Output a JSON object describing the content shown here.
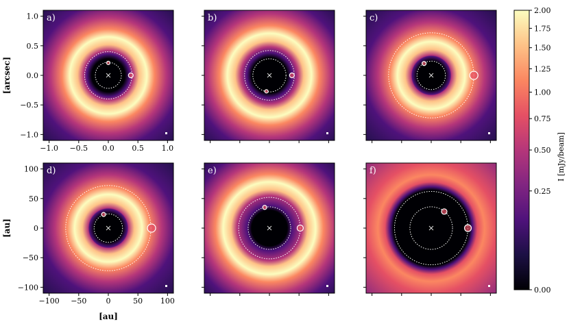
{
  "chart_data": {
    "type": "heatmap",
    "panels": [
      {
        "label": "a)",
        "orbits_r_au": [
          0,
          22,
          40
        ],
        "planets": [
          {
            "x": 0,
            "y": 21,
            "r": 2.5
          },
          {
            "x": 38,
            "y": 0,
            "r": 3.5
          }
        ],
        "gap_inner_au": 28,
        "gap_outer_au": 42
      },
      {
        "label": "b)",
        "orbits_r_au": [
          0,
          28,
          42
        ],
        "planets": [
          {
            "x": -5,
            "y": -27,
            "r": 2.5
          },
          {
            "x": 38,
            "y": 0,
            "r": 3.5
          }
        ],
        "gap_inner_au": 30,
        "gap_outer_au": 48
      },
      {
        "label": "c)",
        "orbits_r_au": [
          0,
          24,
          72
        ],
        "planets": [
          {
            "x": -12,
            "y": 20,
            "r": 3
          },
          {
            "x": 72,
            "y": 0,
            "r": 6
          }
        ],
        "gap_inner_au": 24,
        "gap_outer_au": 34
      },
      {
        "label": "d)",
        "orbits_r_au": [
          0,
          24,
          72
        ],
        "planets": [
          {
            "x": -8,
            "y": 23,
            "r": 3
          },
          {
            "x": 73,
            "y": 0,
            "r": 6
          }
        ],
        "gap_inner_au": 24,
        "gap_outer_au": 34
      },
      {
        "label": "e)",
        "orbits_r_au": [
          0,
          36,
          52
        ],
        "planets": [
          {
            "x": -8,
            "y": 35,
            "r": 3
          },
          {
            "x": 52,
            "y": 0,
            "r": 4.5
          }
        ],
        "gap_inner_au": 30,
        "gap_outer_au": 55
      },
      {
        "label": "f)",
        "orbits_r_au": [
          0,
          36,
          62
        ],
        "planets": [
          {
            "x": 22,
            "y": 28,
            "r": 4
          },
          {
            "x": 62,
            "y": 0,
            "r": 5
          }
        ],
        "gap_inner_au": 66,
        "gap_outer_au": 72
      }
    ],
    "top_row": {
      "ylabel": "[arcsec]",
      "xticks": [
        "−1.0",
        "−0.5",
        "0.0",
        "0.5",
        "1.0"
      ],
      "yticks": [
        "1.0",
        "0.5",
        "0.0",
        "−0.5",
        "−1.0"
      ],
      "tick_values": [
        -1.0,
        -0.5,
        0.0,
        0.5,
        1.0
      ],
      "range": [
        -1.1,
        1.1
      ]
    },
    "bottom_row": {
      "xlabel": "[au]",
      "ylabel": "[au]",
      "xticks": [
        "−100",
        "−50",
        "0",
        "50",
        "100"
      ],
      "yticks": [
        "100",
        "50",
        "0",
        "−50",
        "−100"
      ],
      "tick_values": [
        -100,
        -50,
        0,
        50,
        100
      ],
      "range": [
        -110,
        110
      ]
    },
    "colorbar": {
      "label": "I [mJy/beam]",
      "ticks": [
        "2.00",
        "1.75",
        "1.50",
        "1.25",
        "1.00",
        "0.75",
        "0.50",
        "0.25",
        "0.00"
      ],
      "tick_values": [
        2.0,
        1.75,
        1.5,
        1.25,
        1.0,
        0.75,
        0.5,
        0.25,
        0.0
      ],
      "range": [
        0,
        2.0
      ],
      "scale": "sqrt"
    },
    "colors": {
      "colormap": [
        "#000004",
        "#1c1044",
        "#4f127b",
        "#812581",
        "#b5367a",
        "#e55064",
        "#fb8761",
        "#fec287",
        "#fcfdbf"
      ],
      "planet_marker": "#ffffff",
      "orbit_line": "#ffffff"
    }
  }
}
